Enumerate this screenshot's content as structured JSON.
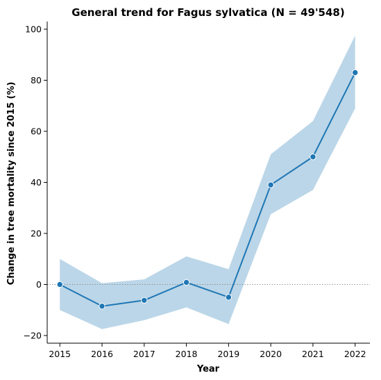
{
  "chart_data": {
    "type": "line",
    "title": "General trend for Fagus sylvatica  (N = 49'548)",
    "xlabel": "Year",
    "ylabel": "Change in tree mortality since 2015 (%)",
    "x": [
      2015,
      2016,
      2017,
      2018,
      2019,
      2020,
      2021,
      2022
    ],
    "xticks": [
      "2015",
      "2016",
      "2017",
      "2018",
      "2019",
      "2020",
      "2021",
      "2022"
    ],
    "yticks": [
      -20,
      0,
      20,
      40,
      60,
      80,
      100
    ],
    "xlim": [
      2014.7,
      2022.35
    ],
    "ylim": [
      -23,
      103
    ],
    "series": [
      {
        "values": [
          0,
          -8.5,
          -6.2,
          0.8,
          -5,
          39,
          50,
          83
        ],
        "ci_lower": [
          -10,
          -17.5,
          -14,
          -9,
          -15.5,
          27.5,
          37,
          69
        ],
        "ci_upper": [
          10,
          0.5,
          2,
          11,
          6,
          51,
          64,
          97.5
        ],
        "color": "#1f77b4"
      }
    ],
    "reference_line": {
      "y": 0,
      "style": "dotted",
      "color": "#808080"
    },
    "grid": false,
    "legend": "none"
  }
}
